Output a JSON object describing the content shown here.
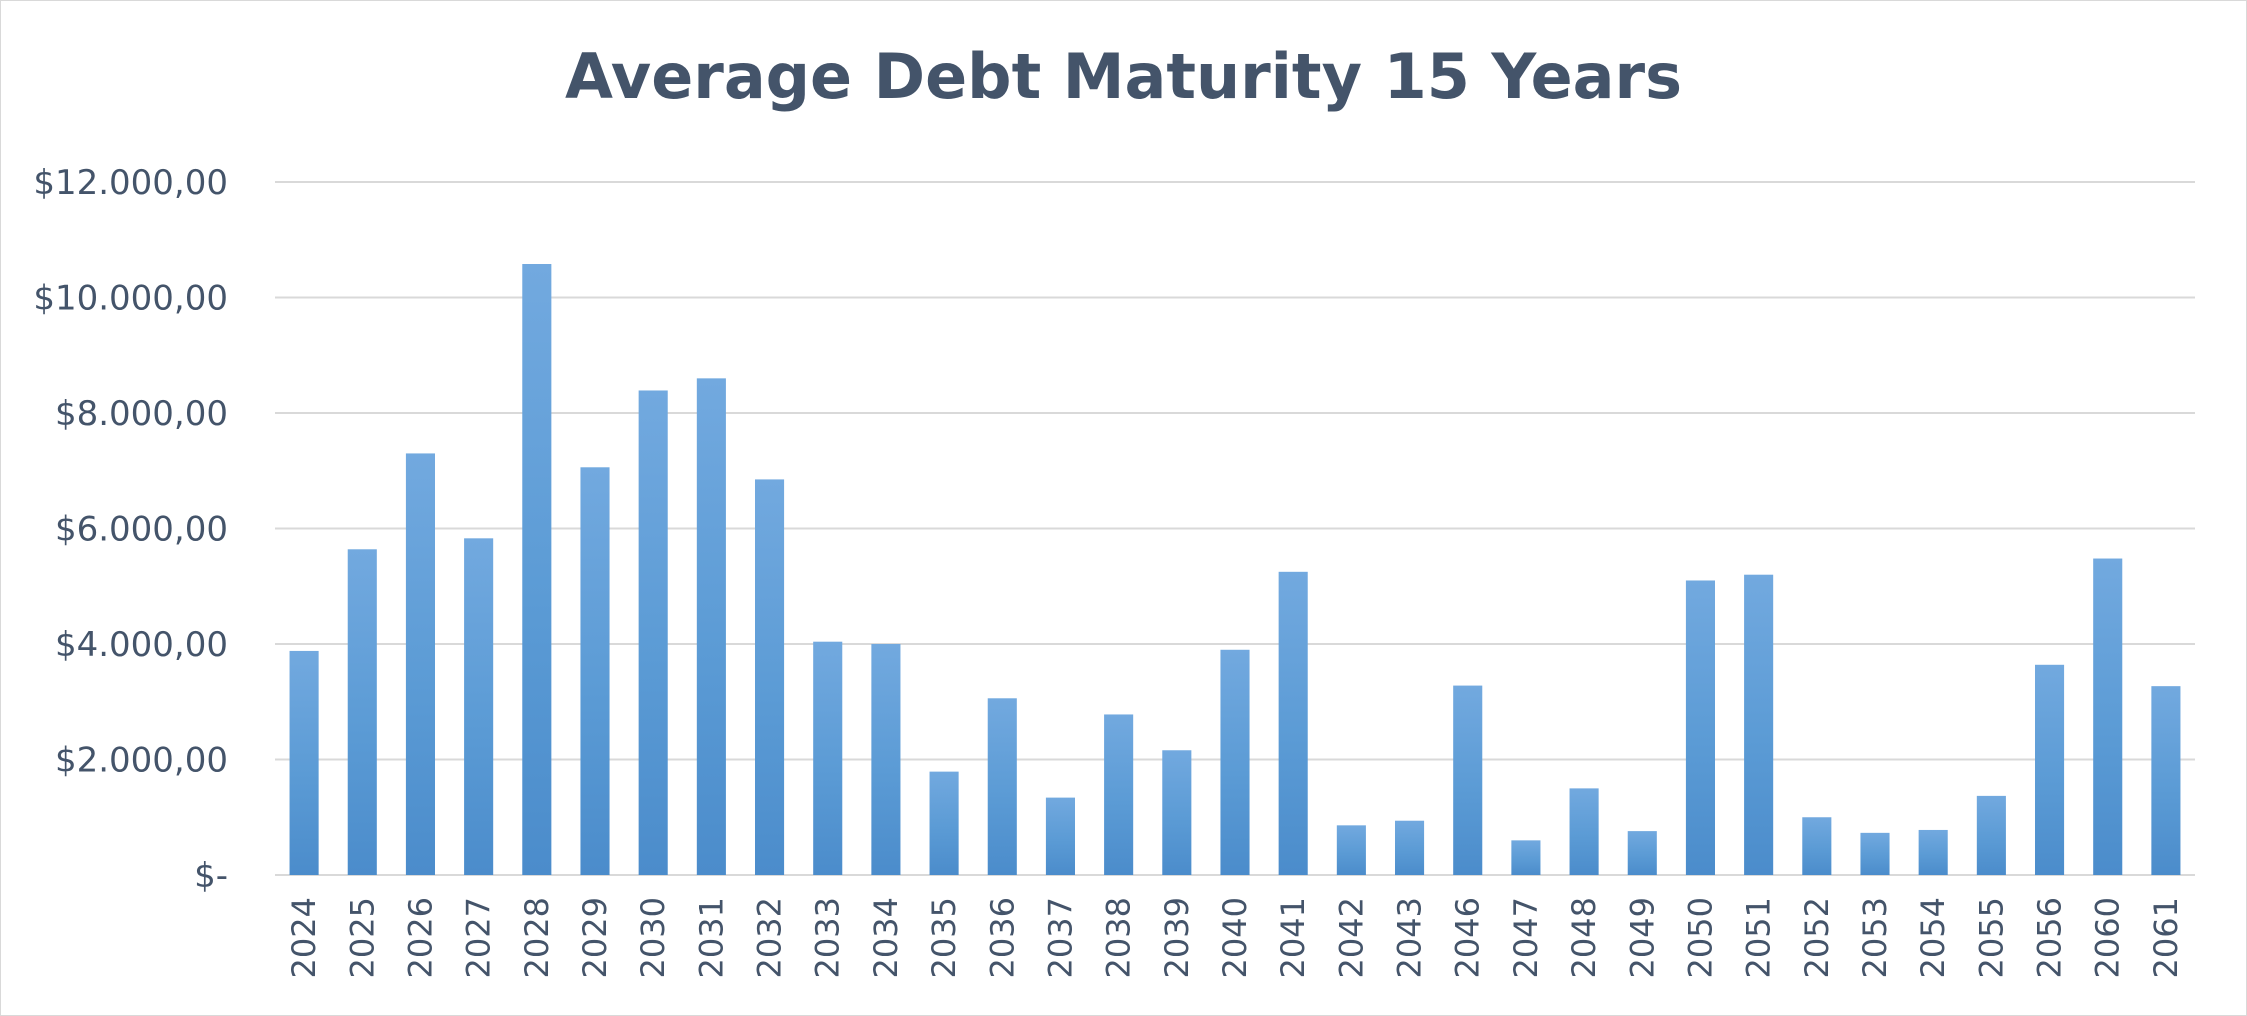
{
  "chart_data": {
    "type": "bar",
    "title": "Average Debt Maturity 15 Years",
    "xlabel": "",
    "ylabel": "",
    "ylim": [
      0,
      12000
    ],
    "yticks": [
      0,
      2000,
      4000,
      6000,
      8000,
      10000,
      12000
    ],
    "ytick_labels": [
      "$-",
      "$2.000,00",
      "$4.000,00",
      "$6.000,00",
      "$8.000,00",
      "$10.000,00",
      "$12.000,00"
    ],
    "grid": true,
    "legend": "none",
    "bar_color": "#5b9bd5",
    "categories": [
      "2024",
      "2025",
      "2026",
      "2027",
      "2028",
      "2029",
      "2030",
      "2031",
      "2032",
      "2033",
      "2034",
      "2035",
      "2036",
      "2037",
      "2038",
      "2039",
      "2040",
      "2041",
      "2042",
      "2043",
      "2046",
      "2047",
      "2048",
      "2049",
      "2050",
      "2051",
      "2052",
      "2053",
      "2054",
      "2055",
      "2056",
      "2060",
      "2061"
    ],
    "values": [
      3880,
      5640,
      7300,
      5830,
      10580,
      7060,
      8390,
      8600,
      6850,
      4040,
      4000,
      1790,
      3060,
      1340,
      2780,
      2160,
      3900,
      5250,
      860,
      940,
      3280,
      600,
      1500,
      760,
      5100,
      5200,
      1000,
      730,
      780,
      1370,
      3640,
      5480,
      3270
    ]
  }
}
